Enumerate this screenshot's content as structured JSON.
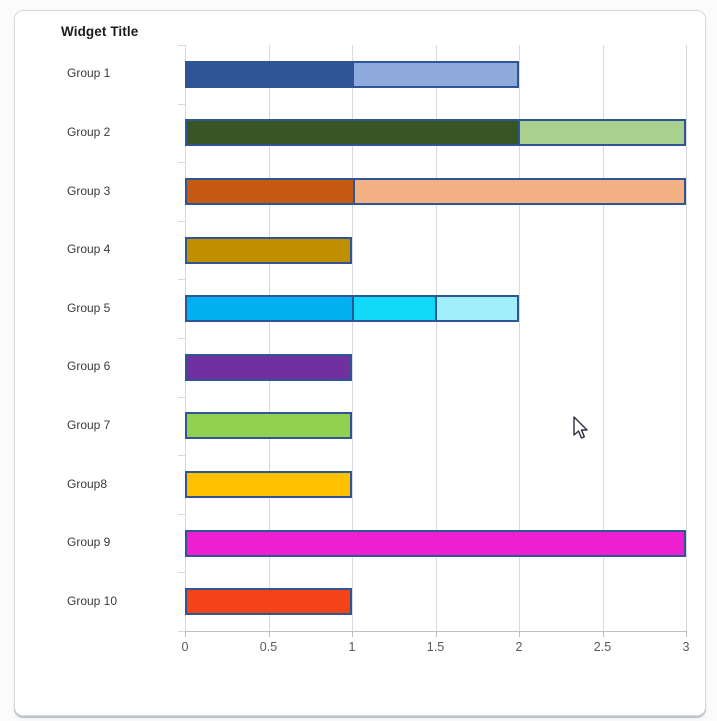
{
  "header": {
    "title": "Widget Title"
  },
  "colors": {
    "grid": "#d9d9d9",
    "axis": "#bfbfbf",
    "tick_label": "#595959",
    "category_label": "#3a3a3a",
    "bar_border": "#2f5597"
  },
  "chart_data": {
    "type": "bar",
    "orientation": "horizontal",
    "stacked": true,
    "title": "Widget Title",
    "xlabel": "",
    "ylabel": "",
    "xlim": [
      0,
      3
    ],
    "x_tick_values": [
      0,
      0.5,
      1,
      1.5,
      2,
      2.5,
      3
    ],
    "x_tick_labels": [
      "0",
      "0.5",
      "1",
      "1.5",
      "2",
      "2.5",
      "3"
    ],
    "grid": "vertical gridlines on",
    "legend": "none",
    "categories": [
      "Group 1",
      "Group 2",
      "Group 3",
      "Group 4",
      "Group 5",
      "Group 6",
      "Group 7",
      "Group8",
      "Group 9",
      "Group 10"
    ],
    "bars": [
      {
        "category": "Group 1",
        "total": 2,
        "segments": [
          {
            "value": 1,
            "color": "#2f5597"
          },
          {
            "value": 1,
            "color": "#8ea9db"
          }
        ]
      },
      {
        "category": "Group 2",
        "total": 3,
        "segments": [
          {
            "value": 2,
            "color": "#375623"
          },
          {
            "value": 1,
            "color": "#a9d08e"
          }
        ]
      },
      {
        "category": "Group 3",
        "total": 3,
        "segments": [
          {
            "value": 1,
            "color": "#c55a11"
          },
          {
            "value": 2,
            "color": "#f4b183"
          }
        ]
      },
      {
        "category": "Group 4",
        "total": 1,
        "segments": [
          {
            "value": 1,
            "color": "#bf8f00"
          }
        ]
      },
      {
        "category": "Group 5",
        "total": 2,
        "segments": [
          {
            "value": 1,
            "color": "#00b0f0"
          },
          {
            "value": 0.5,
            "color": "#0fd9f7"
          },
          {
            "value": 0.5,
            "color": "#a0effb"
          }
        ]
      },
      {
        "category": "Group 6",
        "total": 1,
        "segments": [
          {
            "value": 1,
            "color": "#7030a0"
          }
        ]
      },
      {
        "category": "Group 7",
        "total": 1,
        "segments": [
          {
            "value": 1,
            "color": "#92d050"
          }
        ]
      },
      {
        "category": "Group8",
        "total": 1,
        "segments": [
          {
            "value": 1,
            "color": "#ffc000"
          }
        ]
      },
      {
        "category": "Group 9",
        "total": 3,
        "segments": [
          {
            "value": 3,
            "color": "#ee1fd3"
          }
        ]
      },
      {
        "category": "Group 10",
        "total": 1,
        "segments": [
          {
            "value": 1,
            "color": "#f44318"
          }
        ]
      }
    ]
  }
}
